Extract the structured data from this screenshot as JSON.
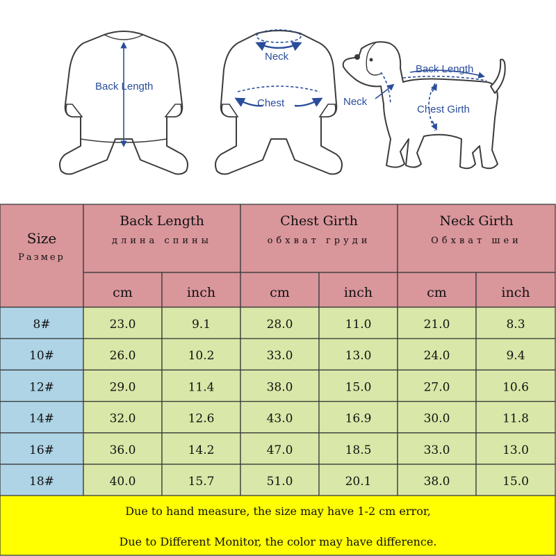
{
  "diagram": {
    "back_label": "Back Length",
    "neck_label": "Neck",
    "chest_label": "Chest",
    "dog_back_label": "Back Length",
    "dog_neck_label": "Neck",
    "dog_chest_label": "Chest Girth"
  },
  "table": {
    "size_header": "Size",
    "size_header_ru": "Размер",
    "groups": [
      {
        "title": "Back Length",
        "subtitle": "длина спины"
      },
      {
        "title": "Chest Girth",
        "subtitle": "обхват груди"
      },
      {
        "title": "Neck Girth",
        "subtitle": "Обхват шеи"
      }
    ],
    "units": [
      "cm",
      "inch",
      "cm",
      "inch",
      "cm",
      "inch"
    ],
    "rows": [
      [
        "8#",
        "23.0",
        "9.1",
        "28.0",
        "11.0",
        "21.0",
        "8.3"
      ],
      [
        "10#",
        "26.0",
        "10.2",
        "33.0",
        "13.0",
        "24.0",
        "9.4"
      ],
      [
        "12#",
        "29.0",
        "11.4",
        "38.0",
        "15.0",
        "27.0",
        "10.6"
      ],
      [
        "14#",
        "32.0",
        "12.6",
        "43.0",
        "16.9",
        "30.0",
        "11.8"
      ],
      [
        "16#",
        "36.0",
        "14.2",
        "47.0",
        "18.5",
        "33.0",
        "13.0"
      ],
      [
        "18#",
        "40.0",
        "15.7",
        "51.0",
        "20.1",
        "38.0",
        "15.0"
      ]
    ],
    "notes": [
      "Due to hand measure, the size may have 1-2 cm error,",
      "Due to Different Monitor, the color may have difference."
    ]
  },
  "colors": {
    "header_bg": "#d9969b",
    "size_col_bg": "#aed4e6",
    "data_bg": "#d9e7a8",
    "footer_bg": "#ffff00",
    "border": "#3a3a3a",
    "label_blue": "#2a4d9a"
  }
}
